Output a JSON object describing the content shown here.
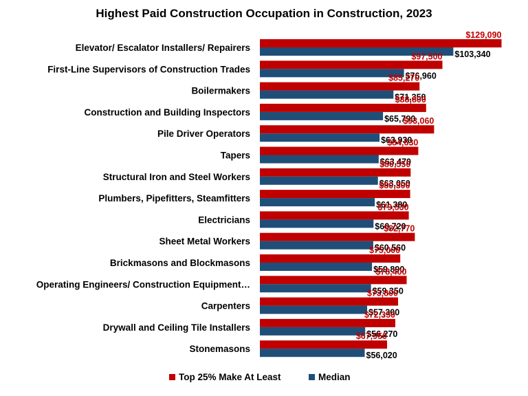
{
  "chart_data": {
    "type": "bar",
    "orientation": "horizontal",
    "title": "Highest Paid Construction Occupation in Construction, 2023",
    "xlabel": "",
    "ylabel": "",
    "xlim": [
      0,
      130000
    ],
    "grid": false,
    "legend_position": "bottom",
    "categories": [
      "Elevator/ Escalator Installers/ Repairers",
      "First-Line Supervisors of Construction Trades",
      "Boilermakers",
      "Construction and Building Inspectors",
      "Pile Driver Operators",
      "Tapers",
      "Structural Iron and Steel Workers",
      "Plumbers, Pipefitters, Steamfitters",
      "Electricians",
      "Sheet Metal Workers",
      "Brickmasons and Blockmasons",
      "Operating Engineers/ Construction Equipment…",
      "Carpenters",
      "Drywall and Ceiling Tile Installers",
      "Stonemasons"
    ],
    "series": [
      {
        "name": "Top 25% Make At Least",
        "color": "#C00000",
        "values": [
          129090,
          97500,
          85270,
          88800,
          93060,
          84630,
          80550,
          80300,
          79530,
          82770,
          75000,
          78400,
          73800,
          72350,
          67950
        ],
        "labels": [
          "$129,090",
          "$97,500",
          "$85,270",
          "$88,800",
          "$93,060",
          "$84,630",
          "$80,550",
          "$80,300",
          "$79,530",
          "$82,770",
          "$75,000",
          "$78,400",
          "$73,800",
          "$72,350",
          "$67,950"
        ]
      },
      {
        "name": "Median",
        "color": "#1F4E79",
        "values": [
          103340,
          76960,
          71350,
          65790,
          63930,
          63470,
          63050,
          61380,
          60720,
          60560,
          59890,
          59350,
          57300,
          56270,
          56020
        ],
        "labels": [
          "$103,340",
          "$76,960",
          "$71,350",
          "$65,790",
          "$63,930",
          "$63,470",
          "$63,050",
          "$61,380",
          "$60,720",
          "$60,560",
          "$59,890",
          "$59,350",
          "$57,300",
          "$56,270",
          "$56,020"
        ]
      }
    ],
    "label_colors": {
      "top": "#C00000",
      "median": "#000000"
    }
  }
}
